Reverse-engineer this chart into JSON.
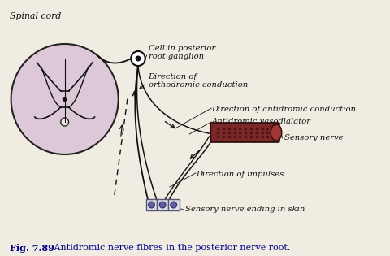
{
  "title_bold": "Fig. 7.89",
  "title_rest": "   Antidromic nerve fibres in the posterior nerve root.",
  "bg_color": "#f0ece2",
  "spinal_cord_label": "Spinal cord",
  "ganglion_label": "Cell in posterior\nroot ganglion",
  "orthodromic_label": "Direction of\northodromic conduction",
  "antidromic_dir_label": "Direction of antidromic conduction",
  "antidromic_vaso_label": "Antidromic vasodialator",
  "sensory_nerve_label": "Sensory nerve",
  "impulses_label": "Direction of impulses",
  "skin_label": "Sensory nerve ending in skin",
  "cord_color": "#ddc8d8",
  "cord_border": "#222222",
  "nerve_color": "#111111",
  "sensory_nerve_body_color": "#7a2828",
  "text_color": "#111111",
  "title_color": "#000088"
}
